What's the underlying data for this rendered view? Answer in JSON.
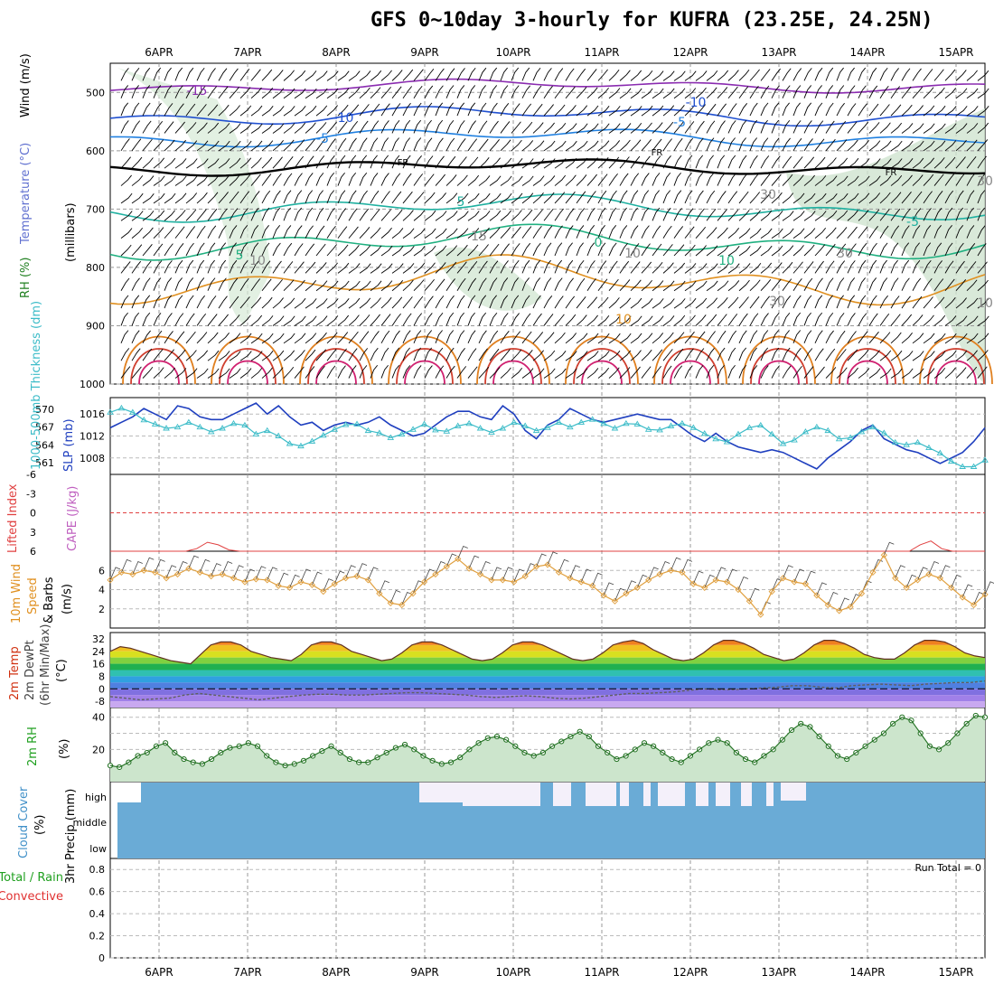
{
  "title": "GFS 0~10day 3-hourly for KUFRA (23.25E, 24.25N)",
  "dates": [
    "6APR",
    "7APR",
    "8APR",
    "9APR",
    "10APR",
    "11APR",
    "12APR",
    "13APR",
    "14APR",
    "15APR"
  ],
  "colors": {
    "temp_contour": "#e08020",
    "wind_barb": "#000000",
    "slp": "#1f3fbf",
    "thickness": "#3cbcc8",
    "li_zero": "#e04040",
    "cape_li": "#e04040",
    "wind10": "#e0a040",
    "temp2m": "#d04010",
    "dewpt": "#606060",
    "rh": "#207020",
    "rh_fill": "#cce5cc",
    "cloud": "#6aabd6",
    "cloud_gap": "#f4f0fa"
  },
  "panels": {
    "upper": {
      "ylabel_parts": [
        "Wind (m/s)",
        "Temperature (°C)",
        "RH (%)"
      ],
      "unit": "(millibars)",
      "ticks": [
        "500",
        "600",
        "700",
        "800",
        "900",
        "1000"
      ],
      "contour_labels": [
        "-15",
        "-10",
        "-10",
        "-5",
        "-5",
        "FR",
        "FR",
        "FR",
        "-5",
        "5",
        "0",
        "5",
        "10",
        "10",
        "15",
        "10",
        "30",
        "30",
        "10",
        "30",
        "10",
        "30"
      ]
    },
    "slp": {
      "ylabel_left": "1000-500mb Thickness (dm)",
      "ylabel_right": "SLP (mb)",
      "ticks_left": [
        "570",
        "567",
        "564",
        "561"
      ],
      "ticks_right": [
        "1016",
        "1012",
        "1008"
      ]
    },
    "cape": {
      "ylabel_left": "Lifted Index",
      "ylabel_right": "CAPE (J/kg)",
      "ticks": [
        "-6",
        "-3",
        "0",
        "3",
        "6"
      ]
    },
    "wind10": {
      "ylabel_parts": [
        "10m Wind",
        "Speed",
        "& Barbs"
      ],
      "unit": "(m/s)",
      "ticks": [
        "6",
        "4",
        "2"
      ]
    },
    "temp": {
      "ylabel_parts": [
        "2m Temp",
        "2m DewPt",
        "(6hr Min/Max)"
      ],
      "unit": "(°C)",
      "ticks": [
        "32",
        "24",
        "16",
        "8",
        "0",
        "-8"
      ]
    },
    "rh": {
      "ylabel": "2m RH",
      "unit": "(%)",
      "ticks": [
        "40",
        "20"
      ]
    },
    "cloud": {
      "ylabel": "Cloud Cover",
      "unit": "(%)",
      "levels": [
        "high",
        "middle",
        "low"
      ]
    },
    "precip": {
      "ylabel_parts": [
        "Total / Rain",
        "Convective"
      ],
      "ylabel": "3hr Precip (mm)",
      "ticks": [
        "0.8",
        "0.6",
        "0.4",
        "0.2",
        "0"
      ],
      "run_total": "Run Total = 0"
    }
  },
  "chart_data": [
    {
      "type": "line",
      "title": "1000-500mb Thickness / SLP",
      "series": [
        {
          "name": "SLP (mb)",
          "values": [
            1013.5,
            1014.5,
            1015.5,
            1017,
            1016,
            1015,
            1017.5,
            1017,
            1015.5,
            1015,
            1015,
            1016,
            1017,
            1018,
            1016,
            1017.5,
            1015.5,
            1014,
            1014.5,
            1013,
            1014,
            1014.5,
            1014,
            1014.5,
            1015.5,
            1014,
            1013,
            1012,
            1012.5,
            1014,
            1015.5,
            1016.5,
            1016.5,
            1015.5,
            1015,
            1017.5,
            1016,
            1013,
            1011.5,
            1014,
            1015,
            1017,
            1016,
            1015,
            1014.5,
            1015,
            1015.5,
            1016,
            1015.5,
            1015,
            1015,
            1013.5,
            1012,
            1011,
            1012.5,
            1011,
            1010,
            1009.5,
            1009,
            1009.5,
            1009,
            1008,
            1007,
            1006,
            1008,
            1009.5,
            1011,
            1013,
            1014,
            1011.5,
            1010.5,
            1009.5,
            1009,
            1008,
            1007,
            1008,
            1009,
            1011,
            1013.5
          ]
        },
        {
          "name": "1000-500mb Thickness (dm)",
          "values": [
            569.5,
            570.2,
            569.5,
            568.2,
            567.5,
            566.8,
            567.0,
            567.8,
            567.0,
            566.2,
            566.8,
            567.6,
            567.3,
            565.8,
            566.4,
            565.5,
            564.2,
            563.8,
            564.6,
            565.6,
            566.6,
            567.4,
            567.5,
            566.4,
            566.0,
            565.2,
            565.8,
            566.6,
            567.5,
            566.5,
            566.3,
            567.2,
            567.6,
            566.8,
            566.1,
            566.8,
            567.8,
            567.2,
            566.4,
            566.9,
            567.8,
            567.0,
            567.8,
            568.3,
            567.6,
            566.8,
            567.6,
            567.5,
            566.6,
            566.5,
            567.2,
            567.6,
            566.9,
            565.9,
            565.0,
            564.5,
            565.8,
            566.9,
            567.3,
            565.8,
            564.2,
            564.8,
            566.2,
            567.0,
            566.4,
            565.0,
            565.2,
            566.2,
            567.0,
            566.0,
            564.4,
            564.0,
            564.4,
            563.5,
            562.6,
            561.2,
            560.3,
            560.3,
            561.4
          ]
        }
      ]
    },
    {
      "type": "line",
      "title": "10m Wind Speed (m/s)",
      "y": [
        5,
        5.8,
        5.6,
        6,
        5.8,
        5.2,
        5.6,
        6.2,
        5.8,
        5.4,
        5.6,
        5.2,
        4.8,
        5.1,
        5,
        4.4,
        4.2,
        4.8,
        4.5,
        3.8,
        4.6,
        5.2,
        5.4,
        5,
        3.6,
        2.6,
        2.4,
        3.6,
        4.8,
        5.6,
        6.4,
        7.2,
        6.2,
        5.6,
        5,
        5,
        4.8,
        5.4,
        6.4,
        6.6,
        5.8,
        5.2,
        4.8,
        4.4,
        3.4,
        2.8,
        3.6,
        4.2,
        5,
        5.6,
        6,
        5.8,
        4.6,
        4.2,
        5,
        4.8,
        4,
        2.8,
        1.4,
        3.8,
        5.2,
        4.8,
        4.6,
        3.4,
        2.4,
        1.8,
        2.2,
        3.6,
        5.8,
        7.6,
        5.2,
        4.2,
        5,
        5.6,
        5.2,
        4.2,
        3.2,
        2.4,
        3.5
      ]
    },
    {
      "type": "area",
      "title": "2m RH (%)",
      "y": [
        10,
        9,
        12,
        16,
        18,
        22,
        24,
        18,
        14,
        12,
        11,
        14,
        18,
        21,
        22,
        24,
        22,
        16,
        12,
        10,
        11,
        13,
        16,
        19,
        22,
        18,
        14,
        12,
        12,
        15,
        18,
        21,
        23,
        20,
        16,
        13,
        11,
        12,
        15,
        20,
        24,
        27,
        28,
        26,
        22,
        18,
        16,
        18,
        22,
        25,
        28,
        31,
        28,
        22,
        18,
        14,
        16,
        20,
        24,
        22,
        18,
        14,
        12,
        16,
        20,
        24,
        26,
        24,
        18,
        14,
        12,
        16,
        20,
        26,
        32,
        36,
        34,
        28,
        22,
        16,
        14,
        18,
        22,
        26,
        30,
        36,
        40,
        38,
        30,
        22,
        20,
        24,
        30,
        36,
        41,
        40
      ]
    },
    {
      "type": "area",
      "title": "2m Temp (°C)",
      "y": [
        24,
        27,
        26,
        24,
        22,
        20,
        18,
        17,
        16,
        22,
        28,
        30,
        30,
        28,
        24,
        22,
        20,
        19,
        18,
        22,
        28,
        30,
        30,
        28,
        24,
        22,
        20,
        18,
        19,
        23,
        28,
        30,
        30,
        28,
        25,
        22,
        19,
        18,
        19,
        23,
        28,
        30,
        30,
        28,
        25,
        22,
        19,
        18,
        19,
        23,
        28,
        30,
        31,
        29,
        25,
        22,
        19,
        18,
        19,
        23,
        28,
        31,
        31,
        29,
        26,
        22,
        20,
        18,
        19,
        23,
        28,
        31,
        31,
        29,
        26,
        22,
        20,
        19,
        19,
        23,
        28,
        31,
        31,
        30,
        27,
        23,
        21,
        20
      ]
    },
    {
      "type": "line",
      "title": "2m DewPt (°C)",
      "y": [
        -5,
        -6,
        -7,
        -6.5,
        -6,
        -4,
        -3,
        -4,
        -5,
        -6,
        -7,
        -6,
        -5,
        -4,
        -3.5,
        -3.5,
        -4,
        -4,
        -3.5,
        -3,
        -2.5,
        -2.5,
        -3,
        -3.5,
        -4,
        -5,
        -5.5,
        -5,
        -4.5,
        -5,
        -6,
        -6.5,
        -6,
        -5,
        -4,
        -3,
        -3,
        -2.5,
        -2,
        -1,
        0,
        -0.5,
        -0.5,
        0,
        0.5,
        1,
        2,
        2,
        1,
        0.5,
        2,
        2.5,
        3,
        2.5,
        2,
        3,
        3.5,
        4,
        4,
        5
      ]
    },
    {
      "type": "line",
      "title": "Lifted Index",
      "y": [
        6,
        6,
        6,
        6,
        6,
        6,
        6,
        6,
        5.6,
        4.6,
        5,
        5.8,
        6,
        6,
        6,
        6,
        6,
        6,
        6,
        6,
        6,
        6,
        6,
        6,
        6,
        6,
        6,
        6,
        6,
        6,
        6,
        6,
        6,
        6,
        6,
        6,
        6,
        6,
        6,
        6,
        6,
        6,
        6,
        6,
        6,
        6,
        6,
        6,
        6,
        6,
        6,
        6,
        6,
        6,
        6,
        6,
        6,
        6,
        6,
        6,
        6,
        6,
        6,
        6,
        6,
        6,
        6,
        6,
        6,
        6,
        6,
        6,
        6,
        6,
        6,
        5,
        4.4,
        5.6,
        6,
        6,
        6,
        6
      ]
    },
    {
      "type": "table",
      "title": "Cloud Cover",
      "high": [
        0,
        0,
        0,
        0,
        0,
        0,
        0,
        0,
        0,
        0,
        0,
        0,
        0,
        0,
        0,
        0,
        0,
        0,
        0,
        0,
        0,
        0,
        0,
        0,
        0,
        0,
        0,
        0,
        0,
        0,
        0,
        0,
        0,
        0,
        0,
        0,
        0,
        0,
        0,
        0,
        0,
        0,
        0,
        0,
        0,
        0,
        0,
        0,
        0,
        0,
        0,
        0,
        0,
        0,
        0,
        0,
        0,
        0,
        0,
        0,
        0,
        0,
        0,
        0,
        0,
        0,
        0,
        0,
        0,
        0,
        0,
        0,
        0,
        0,
        0,
        0,
        0,
        0,
        0,
        0
      ],
      "precip_run_total_mm": 0
    }
  ]
}
